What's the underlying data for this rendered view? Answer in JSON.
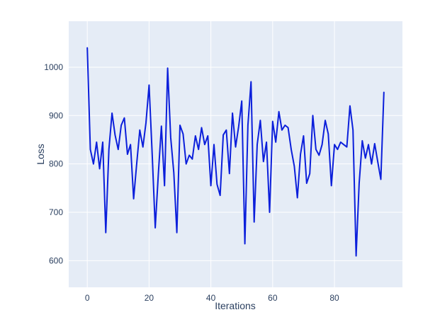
{
  "chart_data": {
    "type": "line",
    "title": "",
    "xlabel": "Iterations",
    "ylabel": "Loss",
    "x_ticks": [
      0,
      20,
      40,
      60,
      80
    ],
    "y_ticks": [
      600,
      700,
      800,
      900,
      1000
    ],
    "xlim": [
      -6,
      102
    ],
    "ylim": [
      545,
      1095
    ],
    "grid": true,
    "legend": "none",
    "plot_bg": "#e5ecf6",
    "grid_color": "#ffffff",
    "line_color": "#0b1fdb",
    "tick_color": "#2a3f5f",
    "x": [
      0,
      1,
      2,
      3,
      4,
      5,
      6,
      7,
      8,
      9,
      10,
      11,
      12,
      13,
      14,
      15,
      16,
      17,
      18,
      19,
      20,
      21,
      22,
      23,
      24,
      25,
      26,
      27,
      28,
      29,
      30,
      31,
      32,
      33,
      34,
      35,
      36,
      37,
      38,
      39,
      40,
      41,
      42,
      43,
      44,
      45,
      46,
      47,
      48,
      49,
      50,
      51,
      52,
      53,
      54,
      55,
      56,
      57,
      58,
      59,
      60,
      61,
      62,
      63,
      64,
      65,
      66,
      67,
      68,
      69,
      70,
      71,
      72,
      73,
      74,
      75,
      76,
      77,
      78,
      79,
      80,
      81,
      82,
      83,
      84,
      85,
      86,
      87,
      88,
      89,
      90,
      91,
      92,
      93,
      94,
      95,
      96
    ],
    "values": [
      1040,
      830,
      800,
      845,
      790,
      845,
      658,
      830,
      905,
      860,
      830,
      880,
      895,
      820,
      840,
      728,
      800,
      870,
      835,
      885,
      963,
      820,
      668,
      780,
      878,
      755,
      998,
      855,
      782,
      658,
      880,
      862,
      800,
      818,
      810,
      858,
      830,
      875,
      840,
      858,
      755,
      840,
      758,
      735,
      860,
      870,
      780,
      905,
      835,
      878,
      930,
      635,
      880,
      970,
      680,
      840,
      890,
      805,
      845,
      700,
      888,
      845,
      908,
      870,
      880,
      875,
      830,
      795,
      730,
      820,
      858,
      760,
      780,
      900,
      830,
      818,
      840,
      890,
      862,
      755,
      840,
      830,
      845,
      840,
      835,
      920,
      870,
      610,
      760,
      848,
      812,
      840,
      800,
      842,
      805,
      768,
      948
    ]
  }
}
